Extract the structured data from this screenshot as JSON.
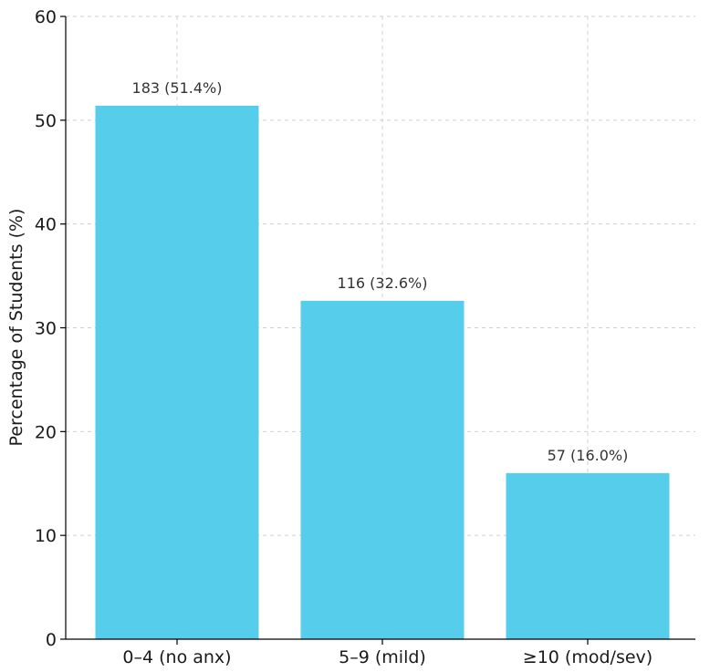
{
  "chart_data": {
    "type": "bar",
    "title": "",
    "xlabel": "",
    "ylabel": "Percentage of Students (%)",
    "ylim": [
      0,
      60
    ],
    "yticks": [
      0,
      10,
      20,
      30,
      40,
      50,
      60
    ],
    "grid": true,
    "categories": [
      "0–4 (no anx)",
      "5–9 (mild)",
      "≥10 (mod/sev)"
    ],
    "values": [
      51.4,
      32.6,
      16.0
    ],
    "data_labels": [
      "183 (51.4%)",
      "116 (32.6%)",
      "57 (16.0%)"
    ],
    "colors": {
      "bar": "#56CDEB",
      "grid": "#CFCFCF",
      "axis": "#000000"
    }
  }
}
